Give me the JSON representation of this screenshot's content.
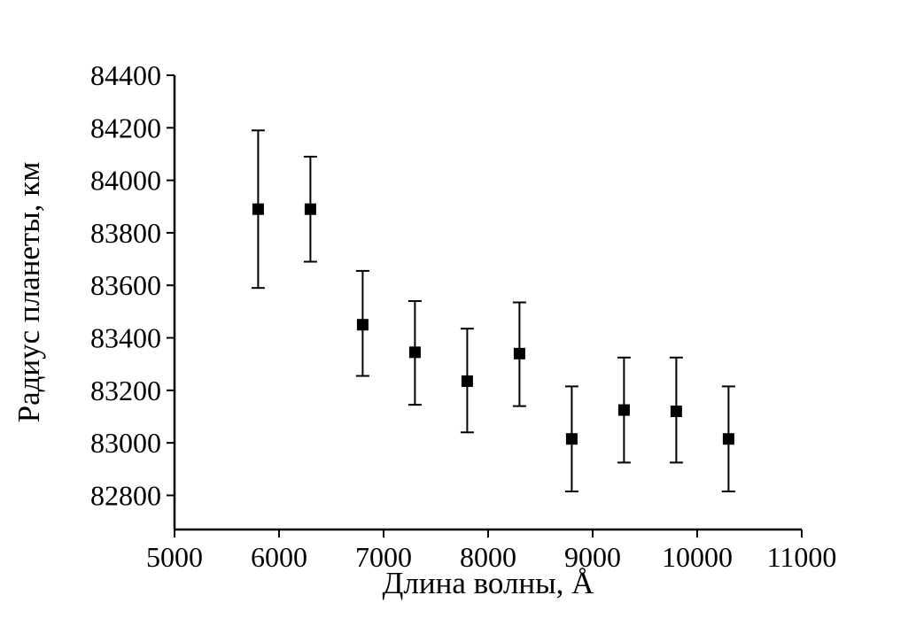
{
  "chart_data": {
    "type": "scatter",
    "title": "",
    "xlabel": "Длина волны, Å",
    "ylabel": "Радиус планеты, км",
    "xlim": [
      5000,
      11000
    ],
    "ylim": [
      82670,
      84400
    ],
    "x_ticks": [
      5000,
      6000,
      7000,
      8000,
      9000,
      10000,
      11000
    ],
    "y_ticks": [
      82800,
      83000,
      83200,
      83400,
      83600,
      83800,
      84000,
      84200,
      84400
    ],
    "grid": false,
    "legend": "none",
    "marker": {
      "shape": "square",
      "color": "#000000",
      "size": 13
    },
    "error_bars": {
      "color": "#000000",
      "cap_width": 15,
      "line_width": 2
    },
    "axis_color": "#000000",
    "points": [
      {
        "x": 5800,
        "y": 83890,
        "y_low": 83590,
        "y_high": 84190
      },
      {
        "x": 6300,
        "y": 83890,
        "y_low": 83690,
        "y_high": 84090
      },
      {
        "x": 6800,
        "y": 83450,
        "y_low": 83255,
        "y_high": 83655
      },
      {
        "x": 7300,
        "y": 83345,
        "y_low": 83145,
        "y_high": 83540
      },
      {
        "x": 7800,
        "y": 83235,
        "y_low": 83040,
        "y_high": 83435
      },
      {
        "x": 8300,
        "y": 83340,
        "y_low": 83140,
        "y_high": 83535
      },
      {
        "x": 8800,
        "y": 83015,
        "y_low": 82815,
        "y_high": 83215
      },
      {
        "x": 9300,
        "y": 83125,
        "y_low": 82925,
        "y_high": 83325
      },
      {
        "x": 9800,
        "y": 83120,
        "y_low": 82925,
        "y_high": 83325
      },
      {
        "x": 10300,
        "y": 83015,
        "y_low": 82815,
        "y_high": 83215
      }
    ]
  }
}
